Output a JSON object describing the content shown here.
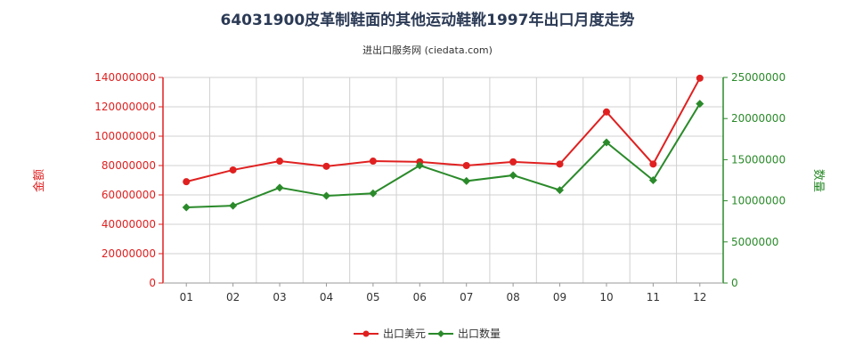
{
  "chart_data": {
    "type": "line",
    "title": "64031900皮革制鞋面的其他运动鞋靴1997年出口月度走势",
    "subtitle": "进出口服务网 (ciedata.com)",
    "categories": [
      "01",
      "02",
      "03",
      "04",
      "05",
      "06",
      "07",
      "08",
      "09",
      "10",
      "11",
      "12"
    ],
    "y_left": {
      "label": "金额",
      "range": [
        0,
        140000000
      ],
      "ticks": [
        "0",
        "20000000",
        "40000000",
        "60000000",
        "80000000",
        "100000000",
        "120000000",
        "140000000"
      ],
      "color": "#e02020"
    },
    "y_right": {
      "label": "数量",
      "range": [
        0,
        25000000
      ],
      "ticks": [
        "0",
        "5000000",
        "10000000",
        "15000000",
        "20000000",
        "25000000"
      ],
      "color": "#2a8a2a"
    },
    "series": [
      {
        "name": "出口美元",
        "axis": "left",
        "color": "#e02020",
        "marker": "circle",
        "values": [
          69000000,
          77000000,
          83000000,
          79500000,
          83000000,
          82500000,
          80000000,
          82500000,
          81000000,
          116500000,
          81000000,
          139500000
        ]
      },
      {
        "name": "出口数量",
        "axis": "right",
        "color": "#2a8a2a",
        "marker": "diamond",
        "values": [
          9200000,
          9400000,
          11600000,
          10600000,
          10900000,
          14300000,
          12400000,
          13100000,
          11300000,
          17100000,
          12500000,
          21800000
        ]
      }
    ],
    "grid": true,
    "legend_position": "bottom-center"
  }
}
